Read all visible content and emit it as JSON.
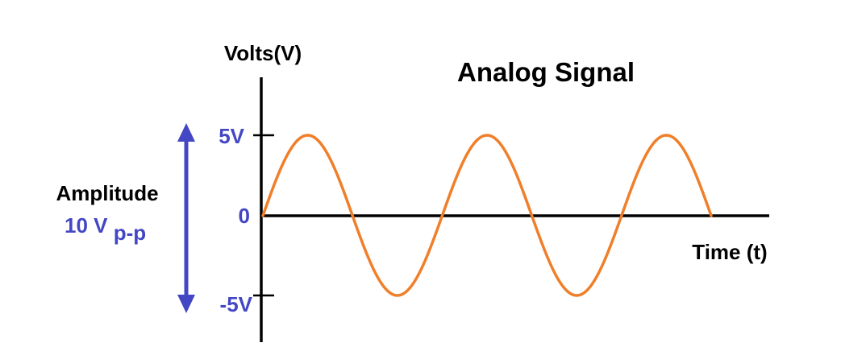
{
  "title": "Analog Signal",
  "y_axis_label": "Volts(V)",
  "x_axis_label": "Time (t)",
  "tick_labels": {
    "positive": "5V",
    "zero": "0",
    "negative": "-5V"
  },
  "amplitude_label": "Amplitude",
  "amplitude_value": {
    "main": "10 V",
    "subscript": "p-p"
  },
  "signal": {
    "amplitude_volts": 5,
    "cycles": 2.5,
    "shape": "sine"
  },
  "colors": {
    "wave": "#F07F2A",
    "accent_blue": "#4447C4",
    "axes": "#000000"
  }
}
